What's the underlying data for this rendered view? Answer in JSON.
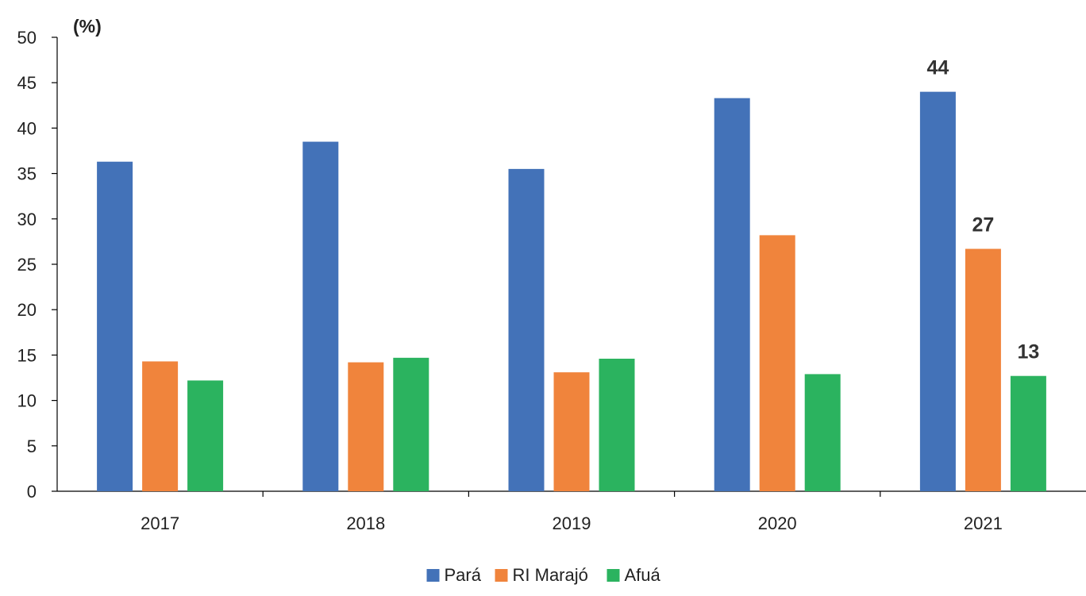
{
  "chart_data": {
    "type": "bar",
    "title": "",
    "ylabel": "(%)",
    "xlabel": "",
    "ylim": [
      0,
      50
    ],
    "yticks": [
      0,
      5,
      10,
      15,
      20,
      25,
      30,
      35,
      40,
      45,
      50
    ],
    "categories": [
      "2017",
      "2018",
      "2019",
      "2020",
      "2021"
    ],
    "series": [
      {
        "name": "Pará",
        "color": "#4372B8",
        "values": [
          36.3,
          38.5,
          35.5,
          43.3,
          44.0
        ]
      },
      {
        "name": "RI Marajó",
        "color": "#F0843C",
        "values": [
          14.3,
          14.2,
          13.1,
          28.2,
          26.7
        ]
      },
      {
        "name": "Afuá",
        "color": "#2BB35F",
        "values": [
          12.2,
          14.7,
          14.6,
          12.9,
          12.7
        ]
      }
    ],
    "data_labels": [
      {
        "series": "Pará",
        "category": "2021",
        "text": "44"
      },
      {
        "series": "RI Marajó",
        "category": "2021",
        "text": "27"
      },
      {
        "series": "Afuá",
        "category": "2021",
        "text": "13"
      }
    ],
    "grid": false,
    "legend_position": "bottom"
  }
}
